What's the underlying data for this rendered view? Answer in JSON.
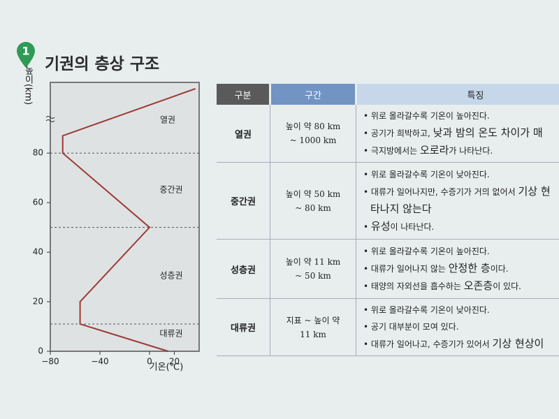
{
  "header": {
    "number": "1",
    "title": "기권의 층상 구조"
  },
  "chart_data": {
    "type": "line",
    "x_label": "기온(℃)",
    "y_label": "높이(km)",
    "x": [
      15,
      -56,
      -56,
      0,
      -70,
      -70,
      37
    ],
    "series": [
      {
        "color": "#9a3b35",
        "values": [
          0,
          11,
          20,
          50,
          80,
          87,
          106
        ]
      }
    ],
    "xlim": [
      -80,
      40
    ],
    "ylim": [
      0,
      106
    ],
    "xticks": [
      {
        "value": -80,
        "label": "−80"
      },
      {
        "value": -40,
        "label": "−40"
      },
      0,
      20
    ],
    "yticks": [
      0,
      20,
      40,
      60,
      80
    ],
    "layers": [
      "열권",
      "중간권",
      "성층권",
      "대류권"
    ],
    "boundaries": [
      11,
      50,
      80
    ]
  },
  "table": {
    "columns": [
      "구분",
      "구간",
      "특징"
    ],
    "rows": [
      {
        "name": "열권",
        "range": [
          "높이 약 80 km",
          "~ 1000 km"
        ],
        "features": [
          {
            "segments": [
              {
                "text": "위로 올라갈수록 기온이 높아진다."
              }
            ]
          },
          {
            "segments": [
              {
                "text": "공기가 희박하고, "
              },
              {
                "text": "낮과 밤의 온도 차이가 매",
                "strong": true
              }
            ]
          },
          {
            "segments": [
              {
                "text": "극지방에서는 "
              },
              {
                "text": "오로라",
                "strong": true
              },
              {
                "text": "가 나타난다."
              }
            ]
          }
        ]
      },
      {
        "name": "중간권",
        "range": [
          "높이 약 50 km",
          "~ 80 km"
        ],
        "features": [
          {
            "segments": [
              {
                "text": "위로 올라갈수록 기온이 낮아진다."
              }
            ]
          },
          {
            "segments": [
              {
                "text": "대류가 일어나지만, 수증기가 거의 없어서 "
              },
              {
                "text": "기상 현",
                "strong": true
              }
            ]
          },
          {
            "segments": [
              {
                "text": "타나지 않는다",
                "strong": true
              }
            ],
            "continuation": true
          },
          {
            "segments": [
              {
                "text": "유성",
                "strong": true
              },
              {
                "text": "이 나타난다."
              }
            ]
          }
        ]
      },
      {
        "name": "성층권",
        "range": [
          "높이 약 11 km",
          "~ 50 km"
        ],
        "features": [
          {
            "segments": [
              {
                "text": "위로 올라갈수록 기온이 높아진다."
              }
            ]
          },
          {
            "segments": [
              {
                "text": "대류가 일어나지 않는 "
              },
              {
                "text": "안정한 층",
                "strong": true
              },
              {
                "text": "이다."
              }
            ]
          },
          {
            "segments": [
              {
                "text": "태양의 자외선을 흡수하는 "
              },
              {
                "text": "오존층",
                "strong": true
              },
              {
                "text": "이 있다."
              }
            ]
          }
        ]
      },
      {
        "name": "대류권",
        "range": [
          "지표 ~ 높이 약",
          "11 km"
        ],
        "features": [
          {
            "segments": [
              {
                "text": "위로 올라갈수록 기온이 낮아진다."
              }
            ]
          },
          {
            "segments": [
              {
                "text": "공기 대부분이 모여 있다."
              }
            ]
          },
          {
            "segments": [
              {
                "text": "대류가 일어나고, 수증기가 있어서 "
              },
              {
                "text": "기상 현상이",
                "strong": true
              }
            ]
          }
        ]
      }
    ]
  }
}
